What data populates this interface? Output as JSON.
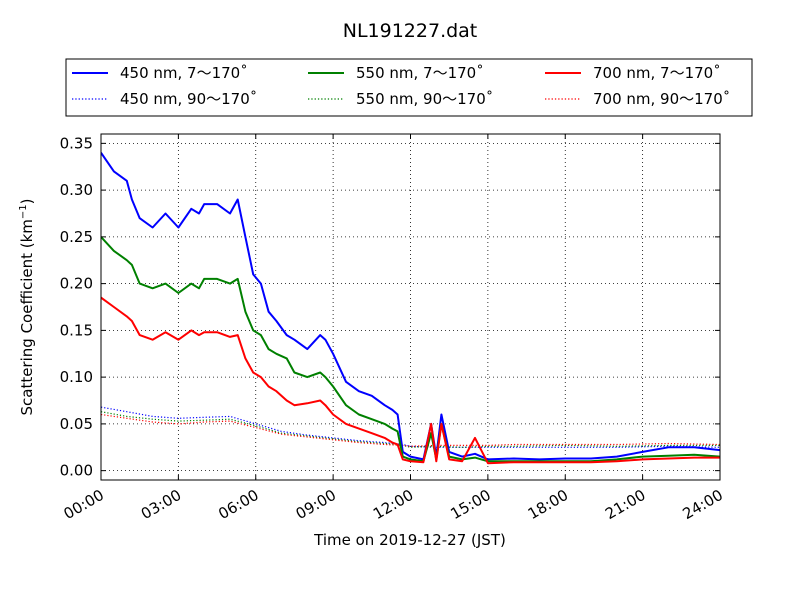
{
  "chart_data": {
    "type": "line",
    "title": "NL191227.dat",
    "xlabel": "Time on 2019-12-27 (JST)",
    "ylabel": "Scattering Coefficient (km",
    "ylabel_superscript": "−1",
    "ylabel_close": ")",
    "xlim": [
      0,
      24
    ],
    "ylim": [
      -0.01,
      0.36
    ],
    "grid": true,
    "legend_position": "top (above plot)",
    "x_tick_values": [
      0,
      3,
      6,
      9,
      12,
      15,
      18,
      21,
      24
    ],
    "x_tick_labels": [
      "00:00",
      "03:00",
      "06:00",
      "09:00",
      "12:00",
      "15:00",
      "18:00",
      "21:00",
      "24:00"
    ],
    "y_tick_values": [
      0.0,
      0.05,
      0.1,
      0.15,
      0.2,
      0.25,
      0.3,
      0.35
    ],
    "y_tick_labels": [
      "0.00",
      "0.05",
      "0.10",
      "0.15",
      "0.20",
      "0.25",
      "0.30",
      "0.35"
    ],
    "series": [
      {
        "name": "450 nm, 7～170˚",
        "color": "#0000ff",
        "style": "solid",
        "x": [
          0,
          0.5,
          1,
          1.2,
          1.5,
          2,
          2.5,
          3,
          3.5,
          3.8,
          4,
          4.5,
          5,
          5.3,
          5.6,
          5.9,
          6.2,
          6.5,
          6.8,
          7.2,
          7.5,
          8,
          8.5,
          8.7,
          9,
          9.5,
          10,
          10.5,
          11,
          11.3,
          11.5,
          11.7,
          12,
          12.5,
          12.8,
          13,
          13.2,
          13.5,
          14,
          14.5,
          15,
          16,
          17,
          18,
          19,
          20,
          21,
          22,
          23,
          24
        ],
        "y": [
          0.34,
          0.32,
          0.31,
          0.29,
          0.27,
          0.26,
          0.275,
          0.26,
          0.28,
          0.275,
          0.285,
          0.285,
          0.275,
          0.29,
          0.25,
          0.21,
          0.2,
          0.17,
          0.16,
          0.145,
          0.14,
          0.13,
          0.145,
          0.14,
          0.125,
          0.095,
          0.085,
          0.08,
          0.07,
          0.065,
          0.06,
          0.02,
          0.015,
          0.012,
          0.05,
          0.015,
          0.06,
          0.02,
          0.015,
          0.018,
          0.012,
          0.013,
          0.012,
          0.013,
          0.013,
          0.015,
          0.02,
          0.025,
          0.025,
          0.022
        ]
      },
      {
        "name": "550 nm, 7～170˚",
        "color": "#008000",
        "style": "solid",
        "x": [
          0,
          0.5,
          1,
          1.2,
          1.5,
          2,
          2.5,
          3,
          3.5,
          3.8,
          4,
          4.5,
          5,
          5.3,
          5.6,
          5.9,
          6.2,
          6.5,
          6.8,
          7.2,
          7.5,
          8,
          8.5,
          8.7,
          9,
          9.5,
          10,
          10.5,
          11,
          11.3,
          11.5,
          11.7,
          12,
          12.5,
          12.8,
          13,
          13.2,
          13.5,
          14,
          14.5,
          15,
          16,
          17,
          18,
          19,
          20,
          21,
          22,
          23,
          24
        ],
        "y": [
          0.25,
          0.235,
          0.225,
          0.22,
          0.2,
          0.195,
          0.2,
          0.19,
          0.2,
          0.195,
          0.205,
          0.205,
          0.2,
          0.205,
          0.17,
          0.15,
          0.145,
          0.13,
          0.125,
          0.12,
          0.105,
          0.1,
          0.105,
          0.1,
          0.09,
          0.07,
          0.06,
          0.055,
          0.05,
          0.045,
          0.042,
          0.015,
          0.012,
          0.01,
          0.04,
          0.012,
          0.05,
          0.015,
          0.012,
          0.014,
          0.01,
          0.01,
          0.01,
          0.01,
          0.01,
          0.012,
          0.015,
          0.016,
          0.017,
          0.015
        ]
      },
      {
        "name": "700 nm, 7～170˚",
        "color": "#ff0000",
        "style": "solid",
        "x": [
          0,
          0.5,
          1,
          1.2,
          1.5,
          2,
          2.5,
          3,
          3.5,
          3.8,
          4,
          4.5,
          5,
          5.3,
          5.6,
          5.9,
          6.2,
          6.5,
          6.8,
          7.2,
          7.5,
          8,
          8.5,
          8.7,
          9,
          9.5,
          10,
          10.5,
          11,
          11.3,
          11.5,
          11.7,
          12,
          12.5,
          12.8,
          13,
          13.2,
          13.5,
          14,
          14.5,
          15,
          16,
          17,
          18,
          19,
          20,
          21,
          22,
          23,
          24
        ],
        "y": [
          0.185,
          0.175,
          0.165,
          0.16,
          0.145,
          0.14,
          0.148,
          0.14,
          0.15,
          0.145,
          0.148,
          0.148,
          0.143,
          0.145,
          0.12,
          0.105,
          0.1,
          0.09,
          0.085,
          0.075,
          0.07,
          0.072,
          0.075,
          0.07,
          0.06,
          0.05,
          0.045,
          0.04,
          0.035,
          0.03,
          0.028,
          0.012,
          0.01,
          0.009,
          0.05,
          0.01,
          0.05,
          0.012,
          0.01,
          0.035,
          0.008,
          0.009,
          0.009,
          0.009,
          0.009,
          0.01,
          0.012,
          0.013,
          0.014,
          0.014
        ]
      },
      {
        "name": "450 nm, 90～170˚",
        "color": "#0000ff",
        "style": "dotted",
        "x": [
          0,
          1,
          2,
          3,
          4,
          5,
          6,
          7,
          8,
          9,
          10,
          11,
          11.7,
          12,
          13,
          14,
          15,
          16,
          18,
          20,
          22,
          24
        ],
        "y": [
          0.068,
          0.063,
          0.058,
          0.056,
          0.057,
          0.058,
          0.05,
          0.042,
          0.038,
          0.035,
          0.032,
          0.03,
          0.028,
          0.026,
          0.025,
          0.025,
          0.025,
          0.025,
          0.025,
          0.025,
          0.026,
          0.025
        ]
      },
      {
        "name": "550 nm, 90～170˚",
        "color": "#008000",
        "style": "dotted",
        "x": [
          0,
          1,
          2,
          3,
          4,
          5,
          6,
          7,
          8,
          9,
          10,
          11,
          11.7,
          12,
          13,
          14,
          15,
          16,
          18,
          20,
          22,
          24
        ],
        "y": [
          0.063,
          0.058,
          0.055,
          0.053,
          0.054,
          0.055,
          0.048,
          0.04,
          0.037,
          0.034,
          0.031,
          0.029,
          0.027,
          0.025,
          0.026,
          0.025,
          0.026,
          0.026,
          0.027,
          0.026,
          0.027,
          0.027
        ]
      },
      {
        "name": "700 nm, 90～170˚",
        "color": "#ff0000",
        "style": "dotted",
        "x": [
          0,
          1,
          2,
          3,
          4,
          5,
          6,
          7,
          8,
          9,
          10,
          11,
          11.7,
          12,
          13,
          14,
          15,
          16,
          18,
          20,
          22,
          24
        ],
        "y": [
          0.06,
          0.056,
          0.052,
          0.05,
          0.052,
          0.053,
          0.046,
          0.039,
          0.036,
          0.033,
          0.03,
          0.028,
          0.027,
          0.026,
          0.027,
          0.027,
          0.027,
          0.028,
          0.028,
          0.028,
          0.029,
          0.028
        ]
      }
    ]
  }
}
